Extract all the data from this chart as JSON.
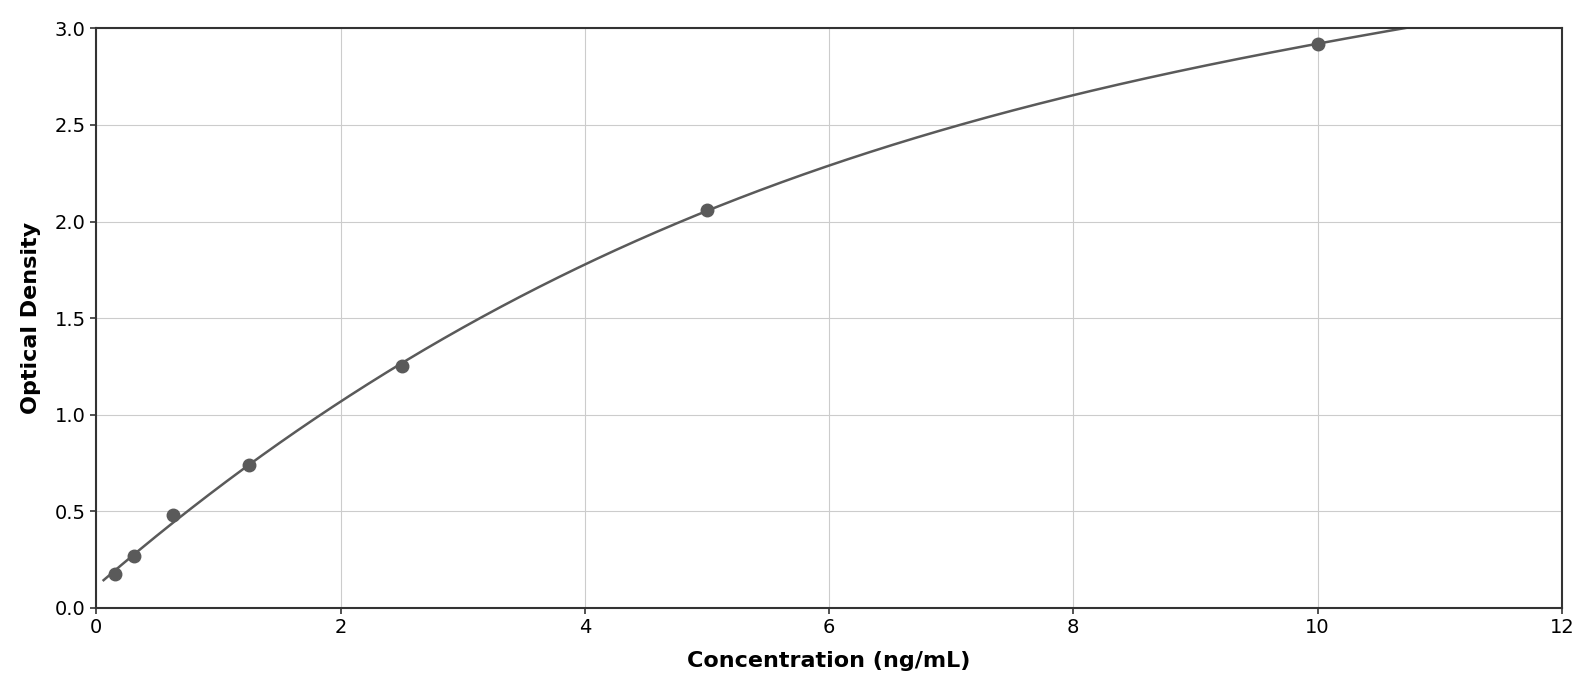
{
  "x_data": [
    0.156,
    0.313,
    0.625,
    1.25,
    2.5,
    5.0,
    10.0
  ],
  "y_data": [
    0.175,
    0.27,
    0.48,
    0.74,
    1.25,
    2.06,
    2.92
  ],
  "xlabel": "Concentration (ng/mL)",
  "ylabel": "Optical Density",
  "xlim": [
    0,
    12
  ],
  "ylim": [
    0,
    3
  ],
  "xticks": [
    0,
    2,
    4,
    6,
    8,
    10,
    12
  ],
  "yticks": [
    0,
    0.5,
    1.0,
    1.5,
    2.0,
    2.5,
    3.0
  ],
  "marker_color": "#5a5a5a",
  "line_color": "#5a5a5a",
  "background_color": "#ffffff",
  "grid_color": "#cccccc",
  "marker_size": 9,
  "line_width": 1.8,
  "xlabel_fontsize": 16,
  "ylabel_fontsize": 16,
  "tick_fontsize": 14,
  "xlabel_fontweight": "bold",
  "ylabel_fontweight": "bold"
}
